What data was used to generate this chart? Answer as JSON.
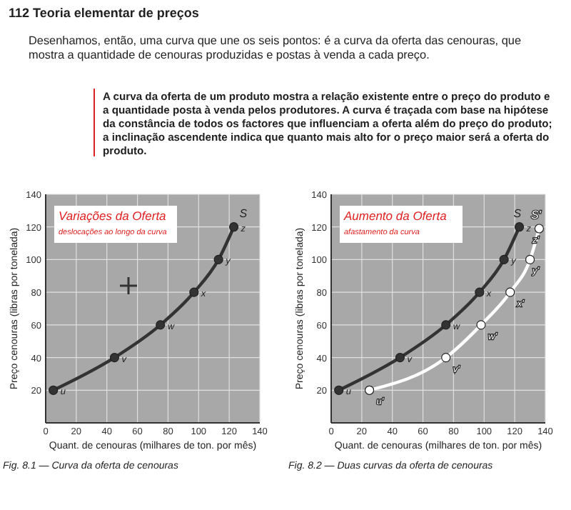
{
  "chart_data": [
    {
      "type": "line",
      "title": "Variações da Oferta",
      "subtitle": "deslocações ao longo da curva",
      "xlabel": "Quant. de cenouras (milhares de ton. por mês)",
      "ylabel": "Preço cenouras (libras por tonelada)",
      "annotations": [
        "Fig. 8.1 — Curva da oferta de cenouras",
        "112 Teoria elementar de preços",
        "Desenhamos, então, uma curva que une os seis pontos: é a curva da oferta das cenouras, que mostra a quantidade de cenouras produzidas e postas à venda a cada preço.",
        "A curva da oferta de um produto mostra a relação existente entre o preço do produto e a quantidade posta à venda pelos produtores. A curva é traçada com base na hipótese da constância de todos os factores que influenciam a oferta além do preço do produto; a inclinação ascendente indica que quanto mais alto for o preço maior será a oferta do produto."
      ],
      "series": [
        {
          "name": "S",
          "color": "#333333",
          "x": [
            5,
            45,
            75,
            97,
            113,
            123
          ],
          "values": [
            20,
            40,
            60,
            80,
            100,
            120
          ],
          "value_labels": [
            "u",
            "v",
            "w",
            "x",
            "y",
            "z"
          ]
        }
      ],
      "xlim": [
        0,
        140
      ],
      "xticks": [
        0,
        20,
        40,
        60,
        80,
        100,
        120,
        140
      ],
      "ylim": [
        0,
        140
      ],
      "yticks": [
        {
          "value": 0,
          "label": null
        },
        20,
        40,
        60,
        80,
        100,
        120,
        140
      ],
      "grid": true,
      "marker": "circle",
      "line_style": "solid"
    },
    {
      "type": "line",
      "title": "Aumento da Oferta",
      "subtitle": "afastamento da curva",
      "xlabel": "Quant. de cenouras (milhares de ton. por mês)",
      "ylabel": "Preço cenouras (libras por tonelada)",
      "annotations": [
        "Fig. 8.2 — Duas curvas da oferta de cenouras"
      ],
      "series": [
        {
          "name": "S",
          "color": "#333333",
          "x": [
            5,
            45,
            75,
            97,
            113,
            123
          ],
          "values": [
            20,
            40,
            60,
            80,
            100,
            120
          ],
          "value_labels": [
            "u",
            "v",
            "w",
            "x",
            "y",
            "z"
          ]
        },
        {
          "name": "S'",
          "color": "#ffffff",
          "x": [
            25,
            75,
            98,
            117,
            130,
            136
          ],
          "values": [
            20,
            40,
            60,
            80,
            100,
            119
          ],
          "value_labels": [
            "u'",
            "v'",
            "w'",
            "x'",
            "y'",
            "z'"
          ]
        }
      ],
      "xlim": [
        0,
        140
      ],
      "xticks": [
        0,
        20,
        40,
        60,
        80,
        100,
        120,
        140
      ],
      "ylim": [
        0,
        140
      ],
      "yticks": [
        {
          "value": 0,
          "label": null
        },
        20,
        40,
        60,
        80,
        100,
        120,
        140
      ],
      "grid": true,
      "marker": "circle",
      "line_style": "solid"
    }
  ]
}
